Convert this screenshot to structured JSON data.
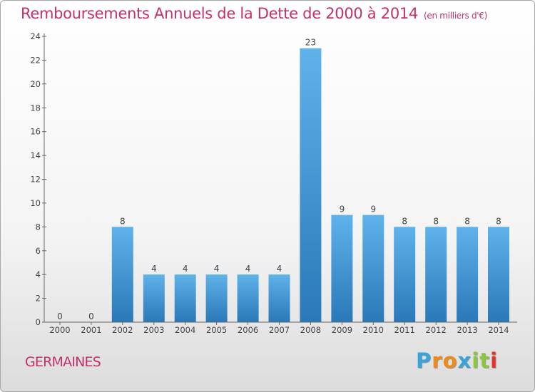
{
  "header": {
    "title": "Remboursements Annuels de la Dette de 2000 à 2014",
    "unit": "(en milliers d'€)"
  },
  "footer": {
    "commune": "GERMAINES",
    "logo_letters": [
      "P",
      "r",
      "o",
      "x",
      "i",
      "t",
      "i"
    ],
    "logo_colors": [
      "#3aa3d9",
      "#f08a1c",
      "#f08a1c",
      "#3aa3d9",
      "#8cc63f",
      "#8cc63f",
      "#e4322b"
    ]
  },
  "colors": {
    "bar_light": "#5fb2ea",
    "bar_dark": "#2a78b8",
    "title": "#c1316b"
  },
  "chart_data": {
    "type": "bar",
    "categories": [
      "2000",
      "2001",
      "2002",
      "2003",
      "2004",
      "2005",
      "2006",
      "2007",
      "2008",
      "2009",
      "2010",
      "2011",
      "2012",
      "2013",
      "2014"
    ],
    "values": [
      0,
      0,
      8,
      4,
      4,
      4,
      4,
      4,
      23,
      9,
      9,
      8,
      8,
      8,
      8
    ],
    "ylim": [
      0,
      24
    ],
    "yticks": [
      0,
      2,
      4,
      6,
      8,
      10,
      12,
      14,
      16,
      18,
      20,
      22,
      24
    ],
    "grid": false,
    "legend": "none"
  }
}
